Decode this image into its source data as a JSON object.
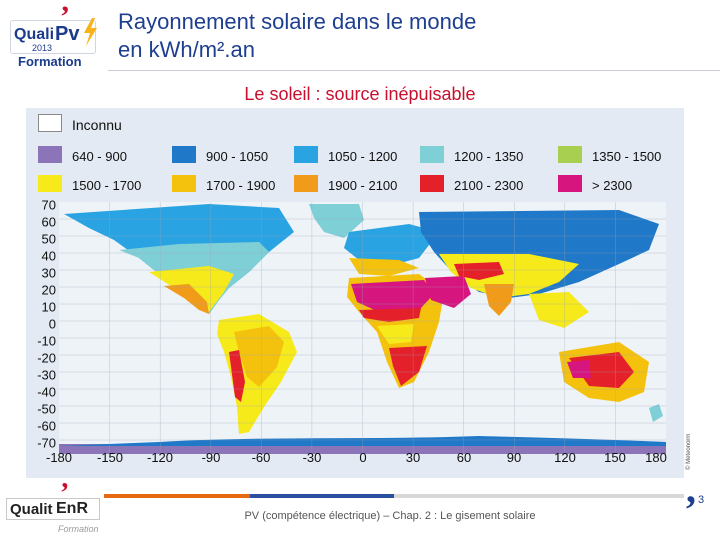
{
  "header": {
    "logo": {
      "brand_quali": "Quali",
      "brand_pv": "Pv",
      "year": "2013",
      "formation": "Formation"
    },
    "title_line1": "Rayonnement solaire dans le monde",
    "title_line2": "en kWh/m².an"
  },
  "subtitle": "Le soleil : source inépuisable",
  "map": {
    "legend": {
      "unknown_label": "Inconnu",
      "items": [
        {
          "label": "640 - 900",
          "color": "#8b74b8"
        },
        {
          "label": "900 - 1050",
          "color": "#1f78c8"
        },
        {
          "label": "1050 - 1200",
          "color": "#2aa3e3"
        },
        {
          "label": "1200 - 1350",
          "color": "#7fcfd7"
        },
        {
          "label": "1350 - 1500",
          "color": "#a8cf4f"
        },
        {
          "label": "1500 - 1700",
          "color": "#f6ea1b"
        },
        {
          "label": "1700 - 1900",
          "color": "#f4c20d"
        },
        {
          "label": "1900 - 2100",
          "color": "#f19b1a"
        },
        {
          "label": "2100 - 2300",
          "color": "#e4202a"
        },
        {
          "label": "> 2300",
          "color": "#d6157f"
        }
      ]
    },
    "lat_ticks": [
      "70",
      "60",
      "50",
      "40",
      "30",
      "20",
      "10",
      "0",
      "-10",
      "-20",
      "-30",
      "-40",
      "-50",
      "-60",
      "-70"
    ],
    "lon_ticks": [
      "-180",
      "-150",
      "-120",
      "-90",
      "-60",
      "-30",
      "0",
      "30",
      "60",
      "90",
      "120",
      "150",
      "180"
    ],
    "credit": "© Meteonorm"
  },
  "footer": {
    "text": "PV (compétence électrique) – Chap. 2 : Le gisement solaire",
    "page_number": "3",
    "logo": {
      "quali": "Qualit",
      "enr": "EnR",
      "formation": "Formation"
    },
    "bar_colors": [
      "#e66a12",
      "#2d4fa0",
      "#d8d8d8"
    ]
  }
}
